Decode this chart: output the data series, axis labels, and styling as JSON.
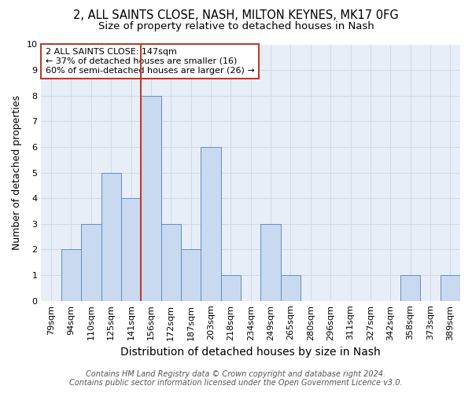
{
  "title1": "2, ALL SAINTS CLOSE, NASH, MILTON KEYNES, MK17 0FG",
  "title2": "Size of property relative to detached houses in Nash",
  "xlabel": "Distribution of detached houses by size in Nash",
  "ylabel": "Number of detached properties",
  "bar_labels": [
    "79sqm",
    "94sqm",
    "110sqm",
    "125sqm",
    "141sqm",
    "156sqm",
    "172sqm",
    "187sqm",
    "203sqm",
    "218sqm",
    "234sqm",
    "249sqm",
    "265sqm",
    "280sqm",
    "296sqm",
    "311sqm",
    "327sqm",
    "342sqm",
    "358sqm",
    "373sqm",
    "389sqm"
  ],
  "bar_values": [
    0,
    2,
    3,
    5,
    4,
    8,
    3,
    2,
    6,
    1,
    0,
    3,
    1,
    0,
    0,
    0,
    0,
    0,
    1,
    0,
    1
  ],
  "bar_color": "#c8d9f0",
  "bar_edge_color": "#5b8fc9",
  "vline_color": "#c0392b",
  "annotation_text": "2 ALL SAINTS CLOSE: 147sqm\n← 37% of detached houses are smaller (16)\n60% of semi-detached houses are larger (26) →",
  "annotation_box_color": "#c0392b",
  "ylim": [
    0,
    10
  ],
  "yticks": [
    0,
    1,
    2,
    3,
    4,
    5,
    6,
    7,
    8,
    9,
    10
  ],
  "grid_color": "#d0d8e8",
  "background_color": "#e8eef8",
  "footer1": "Contains HM Land Registry data © Crown copyright and database right 2024.",
  "footer2": "Contains public sector information licensed under the Open Government Licence v3.0.",
  "title1_fontsize": 10.5,
  "title2_fontsize": 9.5,
  "xlabel_fontsize": 10,
  "ylabel_fontsize": 9,
  "tick_fontsize": 8,
  "annotation_fontsize": 8,
  "footer_fontsize": 7
}
